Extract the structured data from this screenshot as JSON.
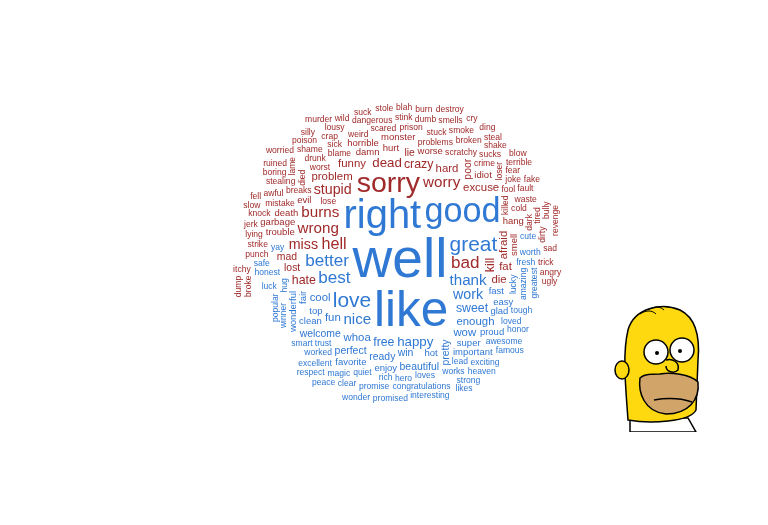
{
  "chart_data": {
    "type": "wordcloud",
    "tick_labels": false,
    "words": [
      "well",
      "like",
      "right",
      "good",
      "love",
      "great",
      "best",
      "better",
      "thank",
      "nice",
      "work",
      "happy",
      "sweet",
      "free",
      "whoa",
      "enough",
      "fun",
      "cool",
      "wow",
      "pretty",
      "win",
      "ready",
      "hot",
      "top",
      "fast",
      "super",
      "fair",
      "perfect",
      "enjoy",
      "favorite",
      "clean",
      "lucky",
      "loves",
      "trust",
      "lead",
      "hero",
      "rich",
      "important",
      "quiet",
      "hug",
      "worked",
      "works",
      "fresh",
      "congratulations",
      "promise",
      "beautiful",
      "loved",
      "amazing",
      "awesome",
      "magic",
      "yay",
      "excellent",
      "smart",
      "worth",
      "winner",
      "exciting",
      "tough",
      "honest",
      "interesting",
      "easy",
      "glad",
      "cute",
      "wonderful",
      "clear",
      "popular",
      "promised",
      "heaven",
      "luck",
      "honor",
      "proud",
      "strong",
      "famous",
      "greatest",
      "wonder",
      "safe",
      "peace",
      "likes",
      "welcome",
      "respect",
      "sorry",
      "bad",
      "hell",
      "wrong",
      "worry",
      "burns",
      "stupid",
      "dead",
      "crazy",
      "kill",
      "miss",
      "hate",
      "afraid",
      "problem",
      "hard",
      "lost",
      "die",
      "funny",
      "excuse",
      "poor",
      "fat",
      "lie",
      "evil",
      "damn",
      "hurt",
      "mad",
      "worse",
      "trouble",
      "smell",
      "lose",
      "killed",
      "problems",
      "breaks",
      "idiot",
      "horrible",
      "worst",
      "scratchy",
      "monster",
      "blame",
      "mistake",
      "died",
      "crime",
      "drunk",
      "cold",
      "sick",
      "fool",
      "weird",
      "loser",
      "scared",
      "prison",
      "stuck",
      "broken",
      "stealing",
      "waste",
      "dark",
      "shame",
      "dangerous",
      "sucks",
      "punch",
      "strike",
      "joke",
      "lame",
      "awful",
      "garbage",
      "hang",
      "crap",
      "stink",
      "dumb",
      "smoke",
      "knock",
      "tired",
      "smells",
      "lousy",
      "fear",
      "fault",
      "trick",
      "shake",
      "dirty",
      "lying",
      "boring",
      "angry",
      "sad",
      "poison",
      "ugly",
      "broke",
      "suck",
      "stole",
      "blah",
      "wild",
      "burn",
      "terrible",
      "bully",
      "steal",
      "fake",
      "itchy",
      "jerk",
      "ruined",
      "slow",
      "revenge",
      "destroy",
      "worried",
      "silly",
      "fell",
      "cry",
      "ding",
      "dump",
      "death",
      "murder",
      "blow"
    ],
    "values": [
      58,
      52,
      42,
      36,
      22,
      22,
      18,
      18,
      16,
      16,
      15,
      14,
      13,
      13,
      12,
      12,
      12,
      12,
      12,
      11,
      11,
      11,
      10,
      10,
      10,
      10,
      10,
      11,
      10,
      10,
      10,
      9,
      9,
      9,
      9,
      9,
      9,
      10,
      9,
      9,
      9,
      9,
      9,
      9,
      9,
      11,
      9,
      9,
      9,
      9,
      9,
      9,
      9,
      9,
      9,
      9,
      9,
      9,
      9,
      10,
      10,
      9,
      10,
      9,
      9,
      9,
      9,
      9,
      9,
      10,
      9,
      9,
      9,
      9,
      9,
      9,
      9,
      11,
      9,
      30,
      18,
      17,
      16,
      16,
      16,
      15,
      14,
      13,
      13,
      15,
      13,
      12,
      12,
      12,
      11,
      12,
      12,
      12,
      11,
      12,
      11,
      10,
      10,
      10,
      11,
      10,
      10,
      10,
      9,
      9,
      9,
      9,
      10,
      10,
      9,
      9,
      10,
      9,
      9,
      9,
      9,
      9,
      9,
      9,
      9,
      9,
      9,
      9,
      9,
      9,
      9,
      9,
      9,
      9,
      9,
      9,
      9,
      9,
      9,
      9,
      9,
      9,
      10,
      10,
      9,
      9,
      9,
      9,
      9,
      9,
      9,
      9,
      9,
      9,
      9,
      9,
      9,
      9,
      9,
      9,
      9,
      9,
      9,
      9,
      9,
      9,
      9,
      9,
      9,
      9,
      9,
      9,
      9,
      9,
      9,
      9,
      9,
      9,
      9,
      9,
      9,
      9,
      9,
      9,
      9,
      10,
      9,
      9
    ],
    "colors": [
      "#2f78d3",
      "#2f78d3",
      "#2f78d3",
      "#2f78d3",
      "#2f78d3",
      "#2f78d3",
      "#2f78d3",
      "#2f78d3",
      "#2f78d3",
      "#2f78d3",
      "#2f78d3",
      "#2f78d3",
      "#2f78d3",
      "#2f78d3",
      "#2f78d3",
      "#2f78d3",
      "#2f78d3",
      "#2f78d3",
      "#2f78d3",
      "#2f78d3",
      "#2f78d3",
      "#2f78d3",
      "#2f78d3",
      "#2f78d3",
      "#2f78d3",
      "#2f78d3",
      "#2f78d3",
      "#2f78d3",
      "#2f78d3",
      "#2f78d3",
      "#2f78d3",
      "#2f78d3",
      "#2f78d3",
      "#2f78d3",
      "#2f78d3",
      "#2f78d3",
      "#2f78d3",
      "#2f78d3",
      "#2f78d3",
      "#2f78d3",
      "#2f78d3",
      "#2f78d3",
      "#2f78d3",
      "#2f78d3",
      "#2f78d3",
      "#2f78d3",
      "#2f78d3",
      "#2f78d3",
      "#2f78d3",
      "#2f78d3",
      "#2f78d3",
      "#2f78d3",
      "#2f78d3",
      "#2f78d3",
      "#2f78d3",
      "#2f78d3",
      "#2f78d3",
      "#2f78d3",
      "#2f78d3",
      "#2f78d3",
      "#2f78d3",
      "#2f78d3",
      "#2f78d3",
      "#2f78d3",
      "#2f78d3",
      "#2f78d3",
      "#2f78d3",
      "#2f78d3",
      "#2f78d3",
      "#2f78d3",
      "#2f78d3",
      "#2f78d3",
      "#2f78d3",
      "#2f78d3",
      "#2f78d3",
      "#2f78d3",
      "#2f78d3",
      "#2f78d3",
      "#2f78d3",
      "#a02a2a",
      "#a02a2a",
      "#a02a2a",
      "#a02a2a",
      "#a02a2a",
      "#a02a2a",
      "#a02a2a",
      "#a02a2a",
      "#a02a2a",
      "#a02a2a",
      "#a02a2a",
      "#a02a2a",
      "#a02a2a",
      "#a02a2a",
      "#a02a2a",
      "#a02a2a",
      "#a02a2a",
      "#a02a2a",
      "#a02a2a",
      "#a02a2a",
      "#a02a2a",
      "#a02a2a",
      "#a02a2a",
      "#a02a2a",
      "#a02a2a",
      "#a02a2a",
      "#a02a2a",
      "#a02a2a",
      "#a02a2a",
      "#a02a2a",
      "#a02a2a",
      "#a02a2a",
      "#a02a2a",
      "#a02a2a",
      "#a02a2a",
      "#a02a2a",
      "#a02a2a",
      "#a02a2a",
      "#a02a2a",
      "#a02a2a",
      "#a02a2a",
      "#a02a2a",
      "#a02a2a",
      "#a02a2a",
      "#a02a2a",
      "#a02a2a",
      "#a02a2a",
      "#a02a2a",
      "#a02a2a",
      "#a02a2a",
      "#a02a2a",
      "#a02a2a",
      "#a02a2a",
      "#a02a2a",
      "#a02a2a",
      "#a02a2a",
      "#a02a2a",
      "#a02a2a",
      "#a02a2a",
      "#a02a2a",
      "#a02a2a",
      "#a02a2a",
      "#a02a2a",
      "#a02a2a",
      "#a02a2a",
      "#a02a2a",
      "#a02a2a",
      "#a02a2a",
      "#a02a2a",
      "#a02a2a",
      "#a02a2a",
      "#a02a2a",
      "#a02a2a",
      "#a02a2a",
      "#a02a2a",
      "#a02a2a",
      "#a02a2a",
      "#a02a2a",
      "#a02a2a",
      "#a02a2a",
      "#a02a2a",
      "#a02a2a",
      "#a02a2a",
      "#a02a2a",
      "#a02a2a",
      "#a02a2a",
      "#a02a2a",
      "#a02a2a",
      "#a02a2a",
      "#a02a2a",
      "#a02a2a",
      "#a02a2a",
      "#a02a2a",
      "#a02a2a",
      "#a02a2a",
      "#a02a2a",
      "#a02a2a",
      "#a02a2a",
      "#a02a2a",
      "#a02a2a",
      "#a02a2a",
      "#a02a2a",
      "#a02a2a",
      "#a02a2a",
      "#a02a2a",
      "#a02a2a",
      "#a02a2a",
      "#a02a2a",
      "#a02a2a",
      "#a02a2a"
    ]
  }
}
